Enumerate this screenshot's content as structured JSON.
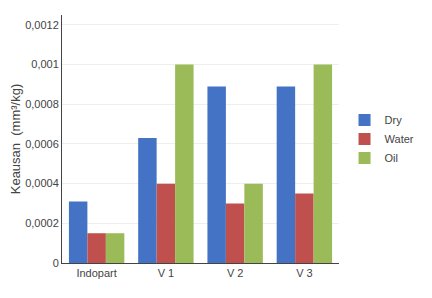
{
  "chart_data": {
    "type": "bar",
    "categories": [
      "Indopart",
      "V 1",
      "V 2",
      "V 3"
    ],
    "series": [
      {
        "name": "Dry",
        "color": "#4472C4",
        "values": [
          0.00031,
          0.00063,
          0.00089,
          0.00089
        ]
      },
      {
        "name": "Water",
        "color": "#C0504D",
        "values": [
          0.00015,
          0.0004,
          0.0003,
          0.00035
        ]
      },
      {
        "name": "Oil",
        "color": "#9BBB59",
        "values": [
          0.00015,
          0.001,
          0.0004,
          0.001
        ]
      }
    ],
    "ylabel": "Keausan  (mm³/kg)",
    "ylim": [
      0,
      0.00125
    ],
    "yticks": [
      0,
      {
        "value": 0.0002,
        "label": "0,0002"
      },
      {
        "value": 0.0004,
        "label": "0,0004"
      },
      {
        "value": 0.0006,
        "label": "0,0006"
      },
      {
        "value": 0.0008,
        "label": "0,0008"
      },
      {
        "value": 0.001,
        "label": "0,001"
      },
      {
        "value": 0.0012,
        "label": "0,0012"
      }
    ],
    "grid": true,
    "legend": "right"
  }
}
